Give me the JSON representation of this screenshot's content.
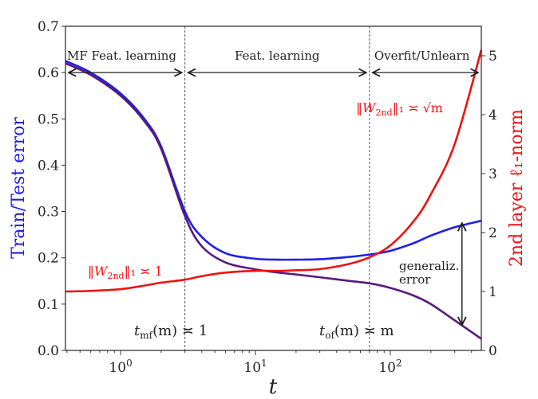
{
  "chart_data": {
    "type": "line",
    "xlabel": "t",
    "ylabel_left": "Train/Test error",
    "ylabel_right": "2nd layer ℓ₁-norm",
    "xscale": "log",
    "xlim": [
      0.39,
      473
    ],
    "ylim_left": [
      0,
      0.7
    ],
    "ylim_right": [
      0,
      5.5
    ],
    "x_ticks": [
      {
        "v": 1,
        "base": "10",
        "exp": "0"
      },
      {
        "v": 10,
        "base": "10",
        "exp": "1"
      },
      {
        "v": 100,
        "base": "10",
        "exp": "2"
      }
    ],
    "y_ticks_left": [
      "0.0",
      "0.1",
      "0.2",
      "0.3",
      "0.4",
      "0.5",
      "0.6",
      "0.7"
    ],
    "y_ticks_right": [
      "0",
      "1",
      "2",
      "3",
      "4",
      "5"
    ],
    "vlines": [
      3,
      70
    ],
    "regions": [
      {
        "label": "MF Feat. learning",
        "from": 0.39,
        "to": 3
      },
      {
        "label": "Feat. learning",
        "from": 3,
        "to": 70
      },
      {
        "label": "Overfit/Unlearn",
        "from": 70,
        "to": 473
      }
    ],
    "series": [
      {
        "name": "test error",
        "axis": "left",
        "color": "#1f1fe6",
        "x": [
          0.39,
          0.6,
          1,
          1.5,
          2,
          3,
          4,
          6,
          10,
          15,
          20,
          30,
          50,
          70,
          100,
          150,
          200,
          300,
          473
        ],
        "y": [
          0.625,
          0.6,
          0.555,
          0.5,
          0.44,
          0.3,
          0.245,
          0.21,
          0.198,
          0.196,
          0.196,
          0.197,
          0.202,
          0.207,
          0.215,
          0.232,
          0.248,
          0.266,
          0.28
        ]
      },
      {
        "name": "train error",
        "axis": "left",
        "color": "#5a1a7a",
        "x": [
          0.39,
          0.6,
          1,
          1.5,
          2,
          3,
          4,
          6,
          10,
          15,
          20,
          30,
          50,
          70,
          100,
          150,
          200,
          300,
          473
        ],
        "y": [
          0.62,
          0.595,
          0.55,
          0.495,
          0.435,
          0.29,
          0.225,
          0.19,
          0.175,
          0.168,
          0.164,
          0.158,
          0.15,
          0.145,
          0.135,
          0.118,
          0.1,
          0.065,
          0.025
        ]
      },
      {
        "name": "2nd layer l1-norm",
        "axis": "right",
        "color": "#ee1111",
        "x": [
          0.39,
          0.6,
          1,
          1.5,
          2,
          3,
          4,
          6,
          10,
          15,
          20,
          30,
          50,
          70,
          100,
          150,
          200,
          300,
          473
        ],
        "y": [
          1.0,
          1.01,
          1.04,
          1.1,
          1.15,
          1.2,
          1.26,
          1.32,
          1.35,
          1.35,
          1.36,
          1.38,
          1.47,
          1.58,
          1.78,
          2.2,
          2.65,
          3.5,
          5.1
        ]
      }
    ],
    "annotations": {
      "norm_low": {
        "pre": "‖W",
        "sub": "2nd",
        "post": "‖₁ ≍ 1"
      },
      "norm_high": {
        "pre": "‖W",
        "sub": "2nd",
        "post": "‖₁ ≍ √m"
      },
      "t_mf": {
        "pre": "t",
        "sub": "mf",
        "post": "(m) ≍ 1"
      },
      "t_of": {
        "pre": "t",
        "sub": "of",
        "post": "(m) ≍ m"
      },
      "gen_line1": "generaliz.",
      "gen_line2": "error"
    },
    "gen_error_arrow": {
      "t": 340,
      "from": 0.275,
      "to": 0.055
    }
  }
}
